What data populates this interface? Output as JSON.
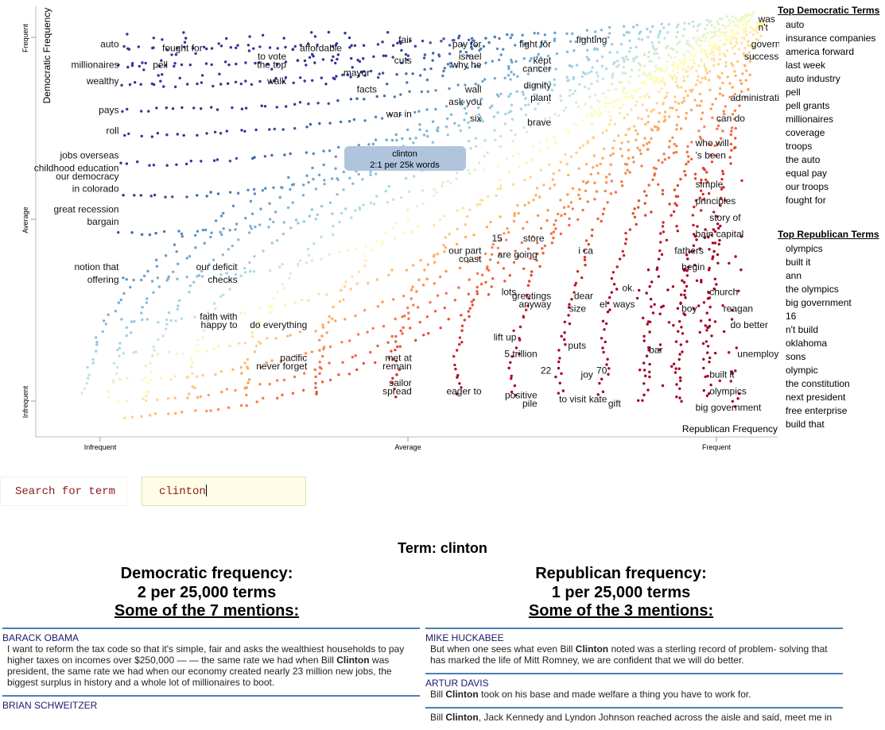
{
  "chart_data": {
    "type": "scatter",
    "x_axis": {
      "label": "Republican Frequency",
      "ticks": [
        "Infrequent",
        "Average",
        "Frequent"
      ]
    },
    "y_axis": {
      "label": "Democratic Frequency",
      "ticks": [
        "Frequent",
        "Average",
        "Infrequent"
      ]
    },
    "color_scale": "blue = Democratic-leaning, red = Republican-leaning",
    "tooltip": {
      "term": "clinton",
      "detail": "2:1 per 25k words"
    },
    "term_labels": [
      {
        "text": "auto",
        "x": 0.08,
        "y": 0.93
      },
      {
        "text": "millionaires",
        "x": 0.08,
        "y": 0.88
      },
      {
        "text": "wealthy",
        "x": 0.08,
        "y": 0.84
      },
      {
        "text": "pays",
        "x": 0.08,
        "y": 0.77
      },
      {
        "text": "roll",
        "x": 0.08,
        "y": 0.72
      },
      {
        "text": "jobs overseas",
        "x": 0.08,
        "y": 0.66
      },
      {
        "text": "childhood education",
        "x": 0.08,
        "y": 0.63
      },
      {
        "text": "our democracy",
        "x": 0.08,
        "y": 0.61
      },
      {
        "text": "in colorado",
        "x": 0.08,
        "y": 0.58
      },
      {
        "text": "great recession",
        "x": 0.08,
        "y": 0.53
      },
      {
        "text": "bargain",
        "x": 0.08,
        "y": 0.5
      },
      {
        "text": "notion that",
        "x": 0.08,
        "y": 0.39
      },
      {
        "text": "offering",
        "x": 0.08,
        "y": 0.36
      },
      {
        "text": "fought for",
        "x": 0.2,
        "y": 0.92
      },
      {
        "text": "pell",
        "x": 0.15,
        "y": 0.88
      },
      {
        "text": "to vote",
        "x": 0.32,
        "y": 0.9
      },
      {
        "text": "the top",
        "x": 0.32,
        "y": 0.88
      },
      {
        "text": "walk",
        "x": 0.32,
        "y": 0.84
      },
      {
        "text": "affordable",
        "x": 0.4,
        "y": 0.92
      },
      {
        "text": "mayor",
        "x": 0.44,
        "y": 0.86
      },
      {
        "text": "facts",
        "x": 0.45,
        "y": 0.82
      },
      {
        "text": "fair",
        "x": 0.5,
        "y": 0.94
      },
      {
        "text": "cuts",
        "x": 0.5,
        "y": 0.89
      },
      {
        "text": "war in",
        "x": 0.5,
        "y": 0.76
      },
      {
        "text": "pay for",
        "x": 0.6,
        "y": 0.93
      },
      {
        "text": "israel",
        "x": 0.6,
        "y": 0.9
      },
      {
        "text": "why he",
        "x": 0.6,
        "y": 0.88
      },
      {
        "text": "wall",
        "x": 0.6,
        "y": 0.82
      },
      {
        "text": "ask you",
        "x": 0.6,
        "y": 0.79
      },
      {
        "text": "six",
        "x": 0.6,
        "y": 0.75
      },
      {
        "text": "fight for",
        "x": 0.7,
        "y": 0.93
      },
      {
        "text": "kept",
        "x": 0.7,
        "y": 0.89
      },
      {
        "text": "cancer",
        "x": 0.7,
        "y": 0.87
      },
      {
        "text": "dignity",
        "x": 0.7,
        "y": 0.83
      },
      {
        "text": "plant",
        "x": 0.7,
        "y": 0.8
      },
      {
        "text": "brave",
        "x": 0.7,
        "y": 0.74
      },
      {
        "text": "fighting",
        "x": 0.78,
        "y": 0.94
      },
      {
        "text": "our deficit",
        "x": 0.25,
        "y": 0.39
      },
      {
        "text": "checks",
        "x": 0.25,
        "y": 0.36
      },
      {
        "text": "faith with",
        "x": 0.25,
        "y": 0.27
      },
      {
        "text": "happy to",
        "x": 0.25,
        "y": 0.25
      },
      {
        "text": "do everything",
        "x": 0.35,
        "y": 0.25
      },
      {
        "text": "pacific",
        "x": 0.35,
        "y": 0.17
      },
      {
        "text": "never forget",
        "x": 0.35,
        "y": 0.15
      },
      {
        "text": "met at",
        "x": 0.5,
        "y": 0.17
      },
      {
        "text": "remain",
        "x": 0.5,
        "y": 0.15
      },
      {
        "text": "sailor",
        "x": 0.5,
        "y": 0.11
      },
      {
        "text": "spread",
        "x": 0.5,
        "y": 0.09
      },
      {
        "text": "eager to",
        "x": 0.6,
        "y": 0.09
      },
      {
        "text": "positive",
        "x": 0.68,
        "y": 0.08
      },
      {
        "text": "pile",
        "x": 0.68,
        "y": 0.06
      },
      {
        "text": "to visit",
        "x": 0.75,
        "y": 0.07
      },
      {
        "text": "kate",
        "x": 0.78,
        "y": 0.07
      },
      {
        "text": "gift",
        "x": 0.8,
        "y": 0.06
      },
      {
        "text": "22",
        "x": 0.7,
        "y": 0.14
      },
      {
        "text": "joy",
        "x": 0.76,
        "y": 0.13
      },
      {
        "text": "70",
        "x": 0.78,
        "y": 0.14
      },
      {
        "text": "5 trillion",
        "x": 0.68,
        "y": 0.18
      },
      {
        "text": "puts",
        "x": 0.75,
        "y": 0.2
      },
      {
        "text": "lift up",
        "x": 0.65,
        "y": 0.22
      },
      {
        "text": "lots",
        "x": 0.65,
        "y": 0.33
      },
      {
        "text": "greetings",
        "x": 0.7,
        "y": 0.32
      },
      {
        "text": "anyway",
        "x": 0.7,
        "y": 0.3
      },
      {
        "text": "dear",
        "x": 0.76,
        "y": 0.32
      },
      {
        "text": "size",
        "x": 0.75,
        "y": 0.29
      },
      {
        "text": "el",
        "x": 0.78,
        "y": 0.3
      },
      {
        "text": "ways",
        "x": 0.82,
        "y": 0.3
      },
      {
        "text": "ok.",
        "x": 0.82,
        "y": 0.34
      },
      {
        "text": "boy",
        "x": 0.88,
        "y": 0.29
      },
      {
        "text": "bar",
        "x": 0.86,
        "y": 0.19
      },
      {
        "text": "15",
        "x": 0.63,
        "y": 0.46
      },
      {
        "text": "store",
        "x": 0.69,
        "y": 0.46
      },
      {
        "text": "our part",
        "x": 0.6,
        "y": 0.43
      },
      {
        "text": "coast",
        "x": 0.6,
        "y": 0.41
      },
      {
        "text": "are going",
        "x": 0.68,
        "y": 0.42
      },
      {
        "text": "i ca",
        "x": 0.76,
        "y": 0.43
      },
      {
        "text": "was",
        "x": 0.99,
        "y": 0.99
      },
      {
        "text": "n't",
        "x": 0.99,
        "y": 0.97
      },
      {
        "text": "government",
        "x": 0.98,
        "y": 0.93
      },
      {
        "text": "success",
        "x": 0.97,
        "y": 0.9
      },
      {
        "text": "administration",
        "x": 0.95,
        "y": 0.8
      },
      {
        "text": "can do",
        "x": 0.93,
        "y": 0.75
      },
      {
        "text": "who will",
        "x": 0.9,
        "y": 0.69
      },
      {
        "text": "'s been",
        "x": 0.9,
        "y": 0.66
      },
      {
        "text": "simple",
        "x": 0.9,
        "y": 0.59
      },
      {
        "text": "principles",
        "x": 0.9,
        "y": 0.55
      },
      {
        "text": "story of",
        "x": 0.92,
        "y": 0.51
      },
      {
        "text": "bain capital",
        "x": 0.9,
        "y": 0.47
      },
      {
        "text": "fathers",
        "x": 0.87,
        "y": 0.43
      },
      {
        "text": "begin",
        "x": 0.88,
        "y": 0.39
      },
      {
        "text": "church",
        "x": 0.92,
        "y": 0.33
      },
      {
        "text": "reagan",
        "x": 0.94,
        "y": 0.29
      },
      {
        "text": "do better",
        "x": 0.95,
        "y": 0.25
      },
      {
        "text": "unemployment",
        "x": 0.96,
        "y": 0.18
      },
      {
        "text": "built it",
        "x": 0.92,
        "y": 0.13
      },
      {
        "text": "olympics",
        "x": 0.92,
        "y": 0.09
      },
      {
        "text": "big government",
        "x": 0.9,
        "y": 0.05
      }
    ]
  },
  "side_panel": {
    "dem_title": "Top Democratic Terms",
    "dem_terms": [
      "auto",
      "insurance companies",
      "america forward",
      "last week",
      "auto industry",
      "pell",
      "pell grants",
      "millionaires",
      "coverage",
      "troops",
      "the auto",
      "equal pay",
      "our troops",
      "fought for"
    ],
    "rep_title": "Top Republican Terms",
    "rep_terms": [
      "olympics",
      "built it",
      "ann",
      "the olympics",
      "big government",
      "16",
      "n't build",
      "oklahoma",
      "sons",
      "olympic",
      "the constitution",
      "next president",
      "free enterprise",
      "build that"
    ]
  },
  "search": {
    "label": "Search for term",
    "value": "clinton"
  },
  "term_detail": {
    "title": "Term: clinton",
    "dem": {
      "freq_heading": "Democratic frequency:",
      "freq_value": "2 per 25,000 terms",
      "mentions": "Some of the 7 mentions:",
      "snippets": [
        {
          "speaker": "BARACK OBAMA",
          "pre": "I want to reform the tax code so that it's simple, fair and asks the wealthiest households to pay higher taxes on incomes over $250,000 — — the same rate we had when Bill ",
          "term": "Clinton",
          "post": " was president, the same rate we had when our economy created nearly 23 million new jobs, the biggest surplus in history and a whole lot of millionaires to boot."
        },
        {
          "speaker": "BRIAN SCHWEITZER",
          "pre": "",
          "term": "",
          "post": ""
        }
      ]
    },
    "rep": {
      "freq_heading": "Republican frequency:",
      "freq_value": "1 per 25,000 terms",
      "mentions": "Some of the 3 mentions:",
      "snippets": [
        {
          "speaker": "MIKE HUCKABEE",
          "pre": "But when one sees what even Bill ",
          "term": "Clinton",
          "post": " noted was a sterling record of problem- solving that has marked the life of Mitt Romney, we are confident that we will do better."
        },
        {
          "speaker": "ARTUR DAVIS",
          "pre": "Bill ",
          "term": "Clinton",
          "post": " took on his base and made welfare a thing you have to work for."
        },
        {
          "speaker": "",
          "pre": "Bill ",
          "term": "Clinton",
          "post": ", Jack Kennedy and Lyndon Johnson reached across the aisle and said, meet me in"
        }
      ]
    }
  }
}
